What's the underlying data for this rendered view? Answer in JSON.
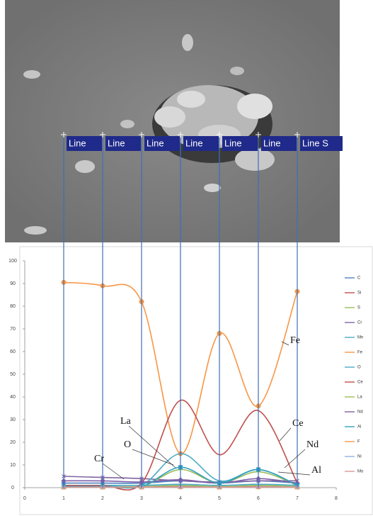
{
  "sem_labels": [
    "Line",
    "Line",
    "Line",
    "Line",
    "Line",
    "Line",
    "Line S"
  ],
  "chart_data": {
    "type": "line",
    "smooth": true,
    "xlim": [
      0,
      8
    ],
    "xticks": [
      0,
      1,
      2,
      3,
      4,
      5,
      6,
      7,
      8
    ],
    "ylim": [
      0,
      100
    ],
    "yticks": [
      0,
      10,
      20,
      30,
      40,
      50,
      60,
      70,
      80,
      90,
      100
    ],
    "grid": false,
    "legend": "right",
    "x": [
      1,
      2,
      3,
      4,
      5,
      6,
      7
    ],
    "series": [
      {
        "name": "C",
        "color": "#4f81bd",
        "marker": "diamond",
        "values": [
          2,
          2,
          2,
          3,
          2,
          3,
          2
        ]
      },
      {
        "name": "Si",
        "color": "#c0504d",
        "marker": "square",
        "values": [
          0.3,
          0.3,
          0.3,
          0.5,
          0.3,
          0.5,
          0.3
        ]
      },
      {
        "name": "S",
        "color": "#9bbb59",
        "marker": "triangle",
        "values": [
          0.5,
          0.5,
          0.5,
          1,
          0.5,
          1,
          0.5
        ]
      },
      {
        "name": "Cr",
        "color": "#8064a2",
        "marker": "x",
        "values": [
          5,
          4.5,
          4,
          3,
          2.5,
          3,
          3
        ]
      },
      {
        "name": "Mn",
        "color": "#4bacc6",
        "marker": "star",
        "values": [
          1,
          1,
          1,
          1.5,
          1,
          1.5,
          1
        ]
      },
      {
        "name": "Fe",
        "color": "#f79646",
        "marker": "circle",
        "values": [
          90.5,
          89,
          82,
          15,
          68,
          36,
          86.5
        ]
      },
      {
        "name": "O",
        "color": "#4bacc6",
        "marker": "plus",
        "values": [
          1,
          1,
          1,
          15,
          3,
          8,
          1
        ]
      },
      {
        "name": "Ce",
        "color": "#c0504d",
        "marker": "none",
        "values": [
          1,
          1,
          2,
          38.5,
          14.5,
          34,
          2
        ]
      },
      {
        "name": "La",
        "color": "#9bbb59",
        "marker": "none",
        "values": [
          0.5,
          0.5,
          0.5,
          8,
          2,
          7,
          1
        ]
      },
      {
        "name": "Nd",
        "color": "#7f5fa8",
        "marker": "diamond",
        "values": [
          3,
          3,
          2.5,
          3.5,
          2,
          4,
          2
        ]
      },
      {
        "name": "Al",
        "color": "#31a0c0",
        "marker": "square",
        "values": [
          0.5,
          0.5,
          0.5,
          9,
          2,
          8,
          1
        ]
      },
      {
        "name": "F",
        "color": "#f79646",
        "marker": "triangle",
        "values": [
          0.2,
          0.2,
          0.2,
          0.3,
          0.2,
          0.3,
          0.2
        ]
      },
      {
        "name": "Ni",
        "color": "#8eb4e3",
        "marker": "x",
        "values": [
          0.2,
          0.2,
          0.2,
          0.3,
          0.2,
          0.3,
          0.2
        ]
      },
      {
        "name": "Mo",
        "color": "#d99694",
        "marker": "star",
        "values": [
          0.2,
          0.2,
          0.2,
          0.3,
          0.2,
          0.3,
          0.2
        ]
      }
    ],
    "annotations": [
      "Fe",
      "Ce",
      "Nd",
      "Al",
      "La",
      "O",
      "Cr"
    ]
  }
}
